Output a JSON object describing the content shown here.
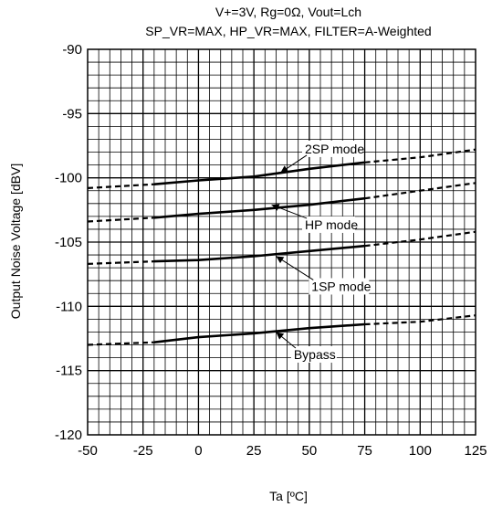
{
  "chart_data": {
    "type": "line",
    "title": "V+=3V, Rg=0Ω, Vout=Lch",
    "subtitle": "SP_VR=MAX, HP_VR=MAX, FILTER=A-Weighted",
    "xlabel": "Ta [ºC]",
    "ylabel": "Output Noise Voltage [dBV]",
    "xlim": [
      -50,
      125
    ],
    "ylim": [
      -120,
      -90
    ],
    "xticks": [
      -50,
      -25,
      0,
      25,
      50,
      75,
      100,
      125
    ],
    "yticks": [
      -90,
      -95,
      -100,
      -105,
      -110,
      -115,
      -120
    ],
    "grid": true,
    "grid_minor": {
      "x_step": 5,
      "y_step": 1
    },
    "line_styles": {
      "solid_range": [
        -20,
        75
      ],
      "dashed_ranges": [
        [
          -50,
          -20
        ],
        [
          75,
          125
        ]
      ]
    },
    "series": [
      {
        "name": "2SP mode",
        "x": [
          -50,
          -20,
          0,
          25,
          50,
          75,
          100,
          125
        ],
        "values": [
          -100.8,
          -100.5,
          -100.2,
          -99.9,
          -99.3,
          -98.8,
          -98.4,
          -97.8
        ]
      },
      {
        "name": "HP mode",
        "x": [
          -50,
          -20,
          0,
          25,
          50,
          75,
          100,
          125
        ],
        "values": [
          -103.4,
          -103.1,
          -102.8,
          -102.5,
          -102.1,
          -101.6,
          -101.0,
          -100.4
        ]
      },
      {
        "name": "1SP mode",
        "x": [
          -50,
          -20,
          0,
          25,
          50,
          75,
          100,
          125
        ],
        "values": [
          -106.7,
          -106.5,
          -106.4,
          -106.1,
          -105.7,
          -105.3,
          -104.8,
          -104.2
        ]
      },
      {
        "name": "Bypass",
        "x": [
          -50,
          -20,
          0,
          25,
          50,
          75,
          100,
          125
        ],
        "values": [
          -113.0,
          -112.8,
          -112.4,
          -112.1,
          -111.7,
          -111.4,
          -111.2,
          -110.7
        ]
      }
    ],
    "annotations": [
      {
        "text": "2SP mode",
        "x": 48,
        "y": -98.1,
        "arrow_to": [
          37,
          -99.6
        ]
      },
      {
        "text": "HP mode",
        "x": 48,
        "y": -104.0,
        "arrow_to": [
          33,
          -102.1
        ]
      },
      {
        "text": "1SP mode",
        "x": 51,
        "y": -108.8,
        "arrow_to": [
          35,
          -106.1
        ]
      },
      {
        "text": "Bypass",
        "x": 43,
        "y": -114.1,
        "arrow_to": [
          35,
          -112.0
        ]
      }
    ]
  }
}
